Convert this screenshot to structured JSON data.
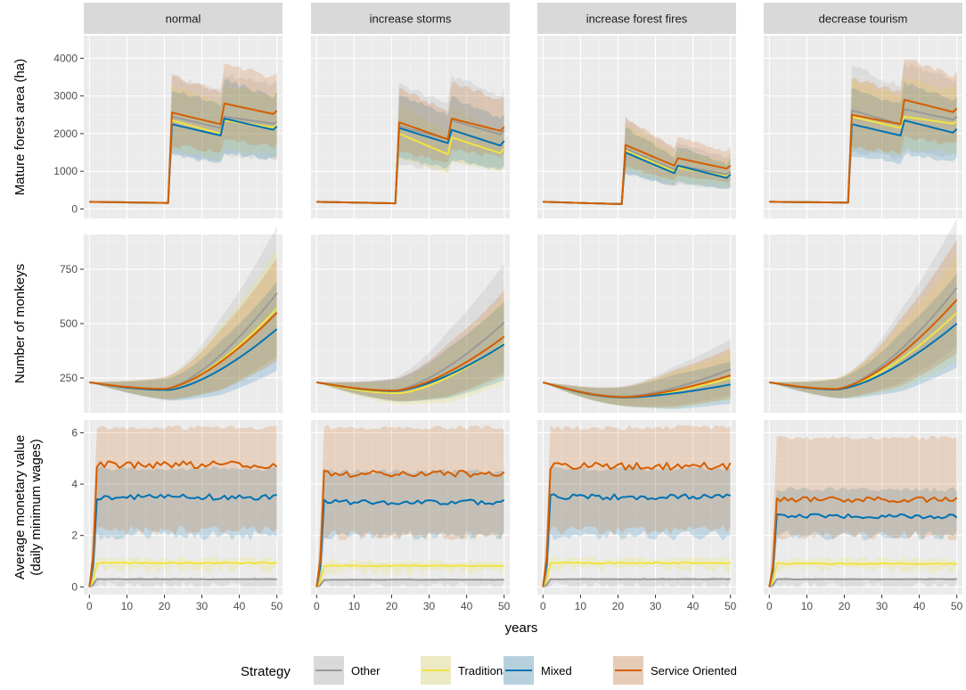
{
  "chart_data": {
    "type": "line",
    "facet_cols": [
      "normal",
      "increase storms",
      "increase forest fires",
      "decrease tourism"
    ],
    "xlabel": "years",
    "x_ticks": [
      0,
      10,
      20,
      30,
      40,
      50
    ],
    "xlim": [
      -1.5,
      51.5
    ],
    "legend": {
      "title": "Strategy",
      "position": "bottom",
      "entries": [
        "Other",
        "Traditional",
        "Mixed",
        "Service Oriented"
      ]
    },
    "colors": {
      "Other": "#999999",
      "Traditional": "#f0e442",
      "Mixed": "#0072b2",
      "Service Oriented": "#d55e00"
    },
    "rows": [
      {
        "ylabel": [
          "Mature forest area (ha)"
        ],
        "ylim": [
          -250,
          4600
        ],
        "y_ticks": [
          0,
          1000,
          2000,
          3000,
          4000
        ],
        "series": {
          "normal": {
            "Other": {
              "start": 190,
              "pre": 160,
              "jumps": [
                [
                  22,
                  2450,
                  2150
                ],
                [
                  36,
                  2450,
                  2250
                ]
              ],
              "band": [
                0.55,
                0.45
              ]
            },
            "Traditional": {
              "start": 190,
              "pre": 160,
              "jumps": [
                [
                  22,
                  2350,
                  2000
                ],
                [
                  36,
                  2350,
                  2150
                ]
              ],
              "band": [
                0.45,
                0.4
              ]
            },
            "Mixed": {
              "start": 190,
              "pre": 160,
              "jumps": [
                [
                  22,
                  2250,
                  1950
                ],
                [
                  36,
                  2400,
                  2080
                ]
              ],
              "band": [
                0.5,
                0.42
              ]
            },
            "Service Oriented": {
              "start": 190,
              "pre": 160,
              "jumps": [
                [
                  22,
                  2560,
                  2250
                ],
                [
                  36,
                  2800,
                  2500
                ]
              ],
              "band": [
                0.45,
                0.38
              ]
            }
          },
          "increase storms": {
            "Other": {
              "start": 190,
              "pre": 150,
              "jumps": [
                [
                  22,
                  2200,
                  1850
                ],
                [
                  36,
                  2350,
                  1950
                ]
              ],
              "band": [
                0.6,
                0.5
              ]
            },
            "Traditional": {
              "start": 190,
              "pre": 150,
              "jumps": [
                [
                  22,
                  2000,
                  1450
                ],
                [
                  36,
                  1900,
                  1450
                ]
              ],
              "band": [
                0.45,
                0.4
              ]
            },
            "Mixed": {
              "start": 190,
              "pre": 150,
              "jumps": [
                [
                  22,
                  2150,
                  1750
                ],
                [
                  36,
                  2100,
                  1650
                ]
              ],
              "band": [
                0.5,
                0.42
              ]
            },
            "Service Oriented": {
              "start": 190,
              "pre": 150,
              "jumps": [
                [
                  22,
                  2300,
                  1850
                ],
                [
                  36,
                  2400,
                  2050
                ]
              ],
              "band": [
                0.45,
                0.4
              ]
            }
          },
          "increase forest fires": {
            "Other": {
              "start": 190,
              "pre": 130,
              "jumps": [
                [
                  22,
                  1600,
                  1050
                ],
                [
                  36,
                  1150,
                  900
                ]
              ],
              "band": [
                0.55,
                0.5
              ]
            },
            "Traditional": {
              "start": 190,
              "pre": 130,
              "jumps": [
                [
                  22,
                  1550,
                  1000
                ],
                [
                  36,
                  1100,
                  850
                ]
              ],
              "band": [
                0.45,
                0.45
              ]
            },
            "Mixed": {
              "start": 190,
              "pre": 130,
              "jumps": [
                [
                  22,
                  1500,
                  950
                ],
                [
                  36,
                  1150,
                  800
                ]
              ],
              "band": [
                0.5,
                0.45
              ]
            },
            "Service Oriented": {
              "start": 190,
              "pre": 130,
              "jumps": [
                [
                  22,
                  1700,
                  1150
                ],
                [
                  36,
                  1350,
                  1050
                ]
              ],
              "band": [
                0.45,
                0.42
              ]
            }
          },
          "decrease tourism": {
            "Other": {
              "start": 190,
              "pre": 170,
              "jumps": [
                [
                  22,
                  2620,
                  2250
                ],
                [
                  36,
                  2650,
                  2350
                ]
              ],
              "band": [
                0.55,
                0.45
              ]
            },
            "Traditional": {
              "start": 190,
              "pre": 170,
              "jumps": [
                [
                  22,
                  2450,
                  2150
                ],
                [
                  36,
                  2450,
                  2250
                ]
              ],
              "band": [
                0.45,
                0.4
              ]
            },
            "Mixed": {
              "start": 190,
              "pre": 170,
              "jumps": [
                [
                  22,
                  2250,
                  1950
                ],
                [
                  36,
                  2350,
                  2000
                ]
              ],
              "band": [
                0.5,
                0.42
              ]
            },
            "Service Oriented": {
              "start": 190,
              "pre": 170,
              "jumps": [
                [
                  22,
                  2500,
                  2250
                ],
                [
                  36,
                  2900,
                  2550
                ]
              ],
              "band": [
                0.45,
                0.38
              ]
            }
          }
        }
      },
      {
        "ylabel": [
          "Number of monkeys"
        ],
        "ylim": [
          90,
          910
        ],
        "y_ticks": [
          250,
          500,
          750
        ],
        "series": {
          "normal": {
            "Other": {
              "start": 230,
              "min": 200,
              "tmin": 20,
              "end": 640,
              "band": [
                0.5,
                0.4
              ]
            },
            "Traditional": {
              "start": 230,
              "min": 198,
              "tmin": 20,
              "end": 570,
              "band": [
                0.45,
                0.4
              ]
            },
            "Mixed": {
              "start": 230,
              "min": 195,
              "tmin": 21,
              "end": 475,
              "band": [
                0.45,
                0.38
              ]
            },
            "Service Oriented": {
              "start": 230,
              "min": 200,
              "tmin": 20,
              "end": 550,
              "band": [
                0.45,
                0.38
              ]
            }
          },
          "increase storms": {
            "Other": {
              "start": 230,
              "min": 190,
              "tmin": 20,
              "end": 505,
              "band": [
                0.5,
                0.45
              ]
            },
            "Traditional": {
              "start": 230,
              "min": 180,
              "tmin": 22,
              "end": 410,
              "band": [
                0.5,
                0.42
              ]
            },
            "Mixed": {
              "start": 230,
              "min": 190,
              "tmin": 21,
              "end": 405,
              "band": [
                0.45,
                0.4
              ]
            },
            "Service Oriented": {
              "start": 230,
              "min": 192,
              "tmin": 21,
              "end": 440,
              "band": [
                0.45,
                0.4
              ]
            }
          },
          "increase forest fires": {
            "Other": {
              "start": 230,
              "min": 165,
              "tmin": 22,
              "end": 290,
              "band": [
                0.45,
                0.4
              ]
            },
            "Traditional": {
              "start": 230,
              "min": 160,
              "tmin": 22,
              "end": 250,
              "band": [
                0.45,
                0.4
              ]
            },
            "Mixed": {
              "start": 230,
              "min": 160,
              "tmin": 22,
              "end": 220,
              "band": [
                0.45,
                0.4
              ]
            },
            "Service Oriented": {
              "start": 230,
              "min": 162,
              "tmin": 22,
              "end": 262,
              "band": [
                0.45,
                0.4
              ]
            }
          },
          "decrease tourism": {
            "Other": {
              "start": 230,
              "min": 200,
              "tmin": 18,
              "end": 665,
              "band": [
                0.45,
                0.4
              ]
            },
            "Traditional": {
              "start": 230,
              "min": 200,
              "tmin": 18,
              "end": 550,
              "band": [
                0.45,
                0.4
              ]
            },
            "Mixed": {
              "start": 230,
              "min": 197,
              "tmin": 18,
              "end": 500,
              "band": [
                0.45,
                0.38
              ]
            },
            "Service Oriented": {
              "start": 230,
              "min": 200,
              "tmin": 18,
              "end": 610,
              "band": [
                0.45,
                0.38
              ]
            }
          }
        }
      },
      {
        "ylabel": [
          "Average monetary value",
          "(daily minimum wages)"
        ],
        "ylim": [
          -0.3,
          6.5
        ],
        "y_ticks": [
          0,
          2,
          4,
          6
        ],
        "series": {
          "normal": {
            "Other": {
              "level": 0.3,
              "band": [
                0,
                0.3
              ]
            },
            "Traditional": {
              "level": 0.93,
              "band": [
                0.7,
                1.1
              ]
            },
            "Mixed": {
              "level": 3.5,
              "band": [
                2.0,
                4.6
              ]
            },
            "Service Oriented": {
              "level": 4.75,
              "band": [
                2.2,
                6.2
              ]
            }
          },
          "increase storms": {
            "Other": {
              "level": 0.28,
              "band": [
                0,
                0.3
              ]
            },
            "Traditional": {
              "level": 0.82,
              "band": [
                0.6,
                1.0
              ]
            },
            "Mixed": {
              "level": 3.3,
              "band": [
                2.0,
                4.5
              ]
            },
            "Service Oriented": {
              "level": 4.4,
              "band": [
                2.0,
                6.2
              ]
            }
          },
          "increase forest fires": {
            "Other": {
              "level": 0.3,
              "band": [
                0,
                0.3
              ]
            },
            "Traditional": {
              "level": 0.93,
              "band": [
                0.7,
                1.1
              ]
            },
            "Mixed": {
              "level": 3.5,
              "band": [
                2.0,
                4.6
              ]
            },
            "Service Oriented": {
              "level": 4.7,
              "band": [
                2.2,
                6.2
              ]
            }
          },
          "decrease tourism": {
            "Other": {
              "level": 0.3,
              "band": [
                0,
                0.3
              ]
            },
            "Traditional": {
              "level": 0.9,
              "band": [
                0.7,
                1.1
              ]
            },
            "Mixed": {
              "level": 2.75,
              "band": [
                2.0,
                3.8
              ]
            },
            "Service Oriented": {
              "level": 3.4,
              "band": [
                2.0,
                5.8
              ]
            }
          }
        }
      }
    ]
  }
}
